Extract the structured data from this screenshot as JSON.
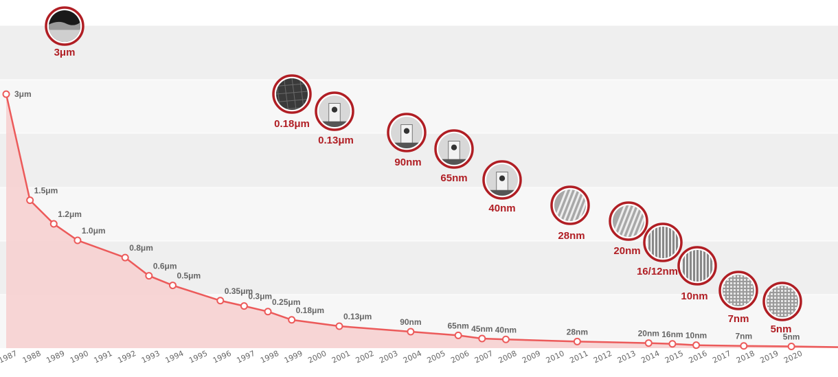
{
  "colors": {
    "line": "#ec5a5a",
    "fill": "#f6d0d0",
    "band_dark": "#efefef",
    "band_light": "#f7f7f7",
    "badge_ring": "#b01e24",
    "badge_label": "#b01e24",
    "point_label": "#666666"
  },
  "chart_data": {
    "type": "area",
    "title": "",
    "xlabel": "",
    "ylabel": "",
    "grid": true,
    "x_ticks": [
      "1987",
      "1988",
      "1989",
      "1990",
      "1991",
      "1992",
      "1993",
      "1994",
      "1995",
      "1996",
      "1997",
      "1998",
      "1999",
      "2000",
      "2001",
      "2002",
      "2003",
      "2004",
      "2005",
      "2006",
      "2007",
      "2008",
      "2009",
      "2010",
      "2011",
      "2012",
      "2013",
      "2014",
      "2015",
      "2016",
      "2017",
      "2018",
      "2019",
      "2020"
    ],
    "points": [
      {
        "x": 1987,
        "label": "3μm",
        "value_um": 3.0
      },
      {
        "x": 1988,
        "label": "1.5μm",
        "value_um": 1.5
      },
      {
        "x": 1989,
        "label": "1.2μm",
        "value_um": 1.2
      },
      {
        "x": 1990,
        "label": "1.0μm",
        "value_um": 1.0
      },
      {
        "x": 1992,
        "label": "0.8μm",
        "value_um": 0.8
      },
      {
        "x": 1993,
        "label": "0.6μm",
        "value_um": 0.6
      },
      {
        "x": 1994,
        "label": "0.5μm",
        "value_um": 0.5
      },
      {
        "x": 1996,
        "label": "0.35μm",
        "value_um": 0.35
      },
      {
        "x": 1997,
        "label": "0.3μm",
        "value_um": 0.3
      },
      {
        "x": 1998,
        "label": "0.25μm",
        "value_um": 0.25
      },
      {
        "x": 1999,
        "label": "0.18μm",
        "value_um": 0.18
      },
      {
        "x": 2001,
        "label": "0.13μm",
        "value_um": 0.13
      },
      {
        "x": 2004,
        "label": "90nm",
        "value_um": 0.09
      },
      {
        "x": 2006,
        "label": "65nm",
        "value_um": 0.065
      },
      {
        "x": 2007,
        "label": "45nm",
        "value_um": 0.045
      },
      {
        "x": 2008,
        "label": "40nm",
        "value_um": 0.04
      },
      {
        "x": 2011,
        "label": "28nm",
        "value_um": 0.028
      },
      {
        "x": 2014,
        "label": "20nm",
        "value_um": 0.02
      },
      {
        "x": 2015,
        "label": "16nm",
        "value_um": 0.016
      },
      {
        "x": 2016,
        "label": "10nm",
        "value_um": 0.01
      },
      {
        "x": 2018,
        "label": "7nm",
        "value_um": 0.007
      },
      {
        "x": 2020,
        "label": "5nm",
        "value_um": 0.005
      }
    ],
    "highlight_nodes": [
      {
        "label": "3μm",
        "pattern": "cross-section"
      },
      {
        "label": "0.18μm",
        "pattern": "cells"
      },
      {
        "label": "0.13μm",
        "pattern": "pillar"
      },
      {
        "label": "90nm",
        "pattern": "pillar"
      },
      {
        "label": "65nm",
        "pattern": "pillar"
      },
      {
        "label": "40nm",
        "pattern": "pillar"
      },
      {
        "label": "28nm",
        "pattern": "fins"
      },
      {
        "label": "20nm",
        "pattern": "fins"
      },
      {
        "label": "16/12nm",
        "pattern": "lines"
      },
      {
        "label": "10nm",
        "pattern": "lines"
      },
      {
        "label": "7nm",
        "pattern": "grid"
      },
      {
        "label": "5nm",
        "pattern": "grid"
      }
    ]
  }
}
